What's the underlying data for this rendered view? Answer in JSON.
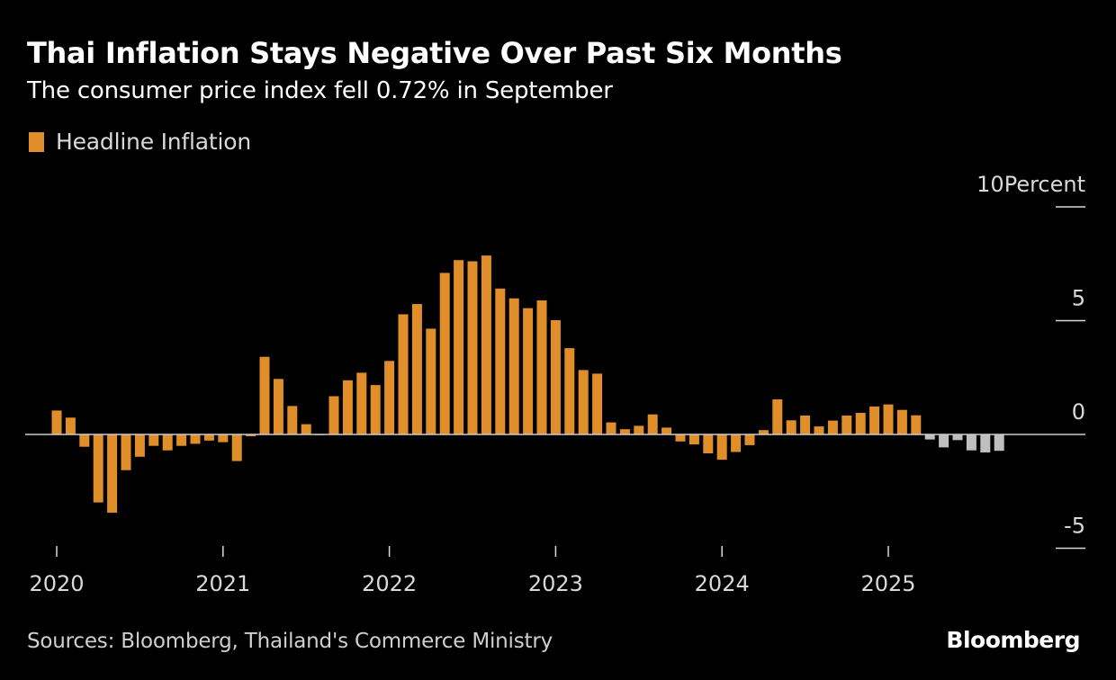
{
  "header": {
    "title": "Thai Inflation Stays Negative Over Past Six Months",
    "subtitle": "The consumer price index fell 0.72% in September"
  },
  "footer": {
    "source": "Sources: Bloomberg, Thailand's Commerce Ministry",
    "brand": "Bloomberg"
  },
  "colors": {
    "series": "#E08E2A",
    "highlight": "#BFBFBF",
    "zero_line": "#cccccc",
    "background": "#000000"
  },
  "chart_data": {
    "type": "bar",
    "title": "Thai Inflation Stays Negative Over Past Six Months",
    "subtitle": "The consumer price index fell 0.72% in September",
    "xlabel": "",
    "ylabel": "Percent",
    "ylim": [
      -5,
      10
    ],
    "yticks": [
      {
        "value": 10,
        "label": "10Percent"
      },
      {
        "value": 5,
        "label": "5"
      },
      {
        "value": 0,
        "label": "0"
      },
      {
        "value": -5,
        "label": "-5"
      }
    ],
    "xticks": [
      {
        "index": 0,
        "label": "2020"
      },
      {
        "index": 12,
        "label": "2021"
      },
      {
        "index": 24,
        "label": "2022"
      },
      {
        "index": 36,
        "label": "2023"
      },
      {
        "index": 48,
        "label": "2024"
      },
      {
        "index": 60,
        "label": "2025"
      }
    ],
    "x_range_months": [
      0,
      74
    ],
    "legend": [
      {
        "name": "Headline Inflation",
        "color": "#E08E2A"
      }
    ],
    "legend_position": "top-left",
    "grid": false,
    "start": "2020-01",
    "highlight_from_index": 63,
    "series": [
      {
        "name": "Headline Inflation",
        "values": [
          1.05,
          0.74,
          -0.54,
          -2.99,
          -3.44,
          -1.57,
          -0.98,
          -0.5,
          -0.7,
          -0.5,
          -0.41,
          -0.27,
          -0.34,
          -1.17,
          -0.08,
          3.41,
          2.44,
          1.25,
          0.45,
          -0.02,
          1.68,
          2.38,
          2.71,
          2.17,
          3.23,
          5.28,
          5.73,
          4.65,
          7.1,
          7.66,
          7.61,
          7.86,
          6.41,
          5.98,
          5.55,
          5.89,
          5.02,
          3.79,
          2.83,
          2.67,
          0.53,
          0.23,
          0.38,
          0.88,
          0.3,
          -0.31,
          -0.44,
          -0.83,
          -1.11,
          -0.77,
          -0.47,
          0.19,
          1.54,
          0.62,
          0.83,
          0.35,
          0.61,
          0.83,
          0.95,
          1.23,
          1.32,
          1.08,
          0.84,
          -0.22,
          -0.57,
          -0.25,
          -0.7,
          -0.79,
          -0.72
        ]
      }
    ]
  }
}
